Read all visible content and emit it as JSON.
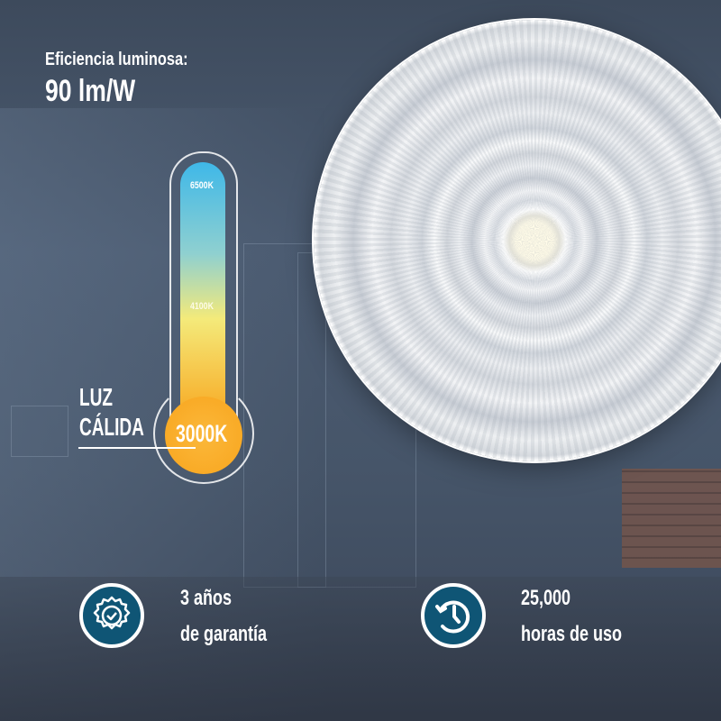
{
  "efficiency": {
    "label": "Eficiencia luminosa:",
    "value": "90 lm/W"
  },
  "thermometer": {
    "ticks": [
      "6500K",
      "4100K"
    ],
    "selected": "3000K",
    "caption_line1": "LUZ",
    "caption_line2": "CÁLIDA",
    "gradient_colors": [
      "#3fb8e8",
      "#f4ea7a",
      "#f8a51e"
    ]
  },
  "features": [
    {
      "icon": "warranty-badge-icon",
      "line1": "3 años",
      "line2": "de garantía"
    },
    {
      "icon": "clock-history-icon",
      "line1": "25,000",
      "line2": "horas de uso"
    }
  ],
  "colors": {
    "icon_bg": "#0f5575",
    "text": "#ffffff"
  }
}
